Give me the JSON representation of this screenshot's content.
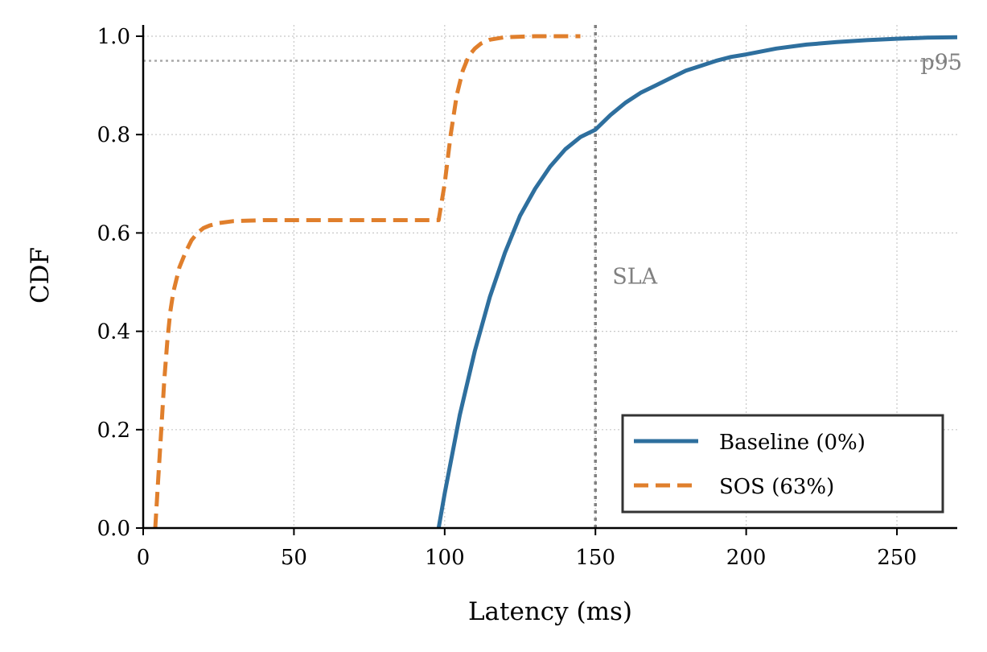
{
  "chart_data": {
    "type": "line",
    "title": "",
    "xlabel": "Latency (ms)",
    "ylabel": "CDF",
    "xlim": [
      0,
      270
    ],
    "ylim": [
      0,
      1.02
    ],
    "xticks": [
      0,
      50,
      100,
      150,
      200,
      250
    ],
    "xtick_labels": [
      "0",
      "50",
      "100",
      "150",
      "200",
      "250"
    ],
    "yticks": [
      0.0,
      0.2,
      0.4,
      0.6,
      0.8,
      1.0
    ],
    "ytick_labels": [
      "0.0",
      "0.2",
      "0.4",
      "0.6",
      "0.8",
      "1.0"
    ],
    "grid": true,
    "legend_position": "lower-right",
    "series": [
      {
        "name": "Baseline (0%)",
        "style": "solid",
        "color": "#2e6f9e",
        "x": [
          98,
          100,
          105,
          110,
          115,
          120,
          125,
          130,
          135,
          140,
          145,
          150,
          155,
          160,
          165,
          170,
          175,
          180,
          185,
          190,
          195,
          200,
          210,
          220,
          230,
          240,
          250,
          260,
          270
        ],
        "y": [
          0.0,
          0.07,
          0.23,
          0.36,
          0.47,
          0.56,
          0.635,
          0.69,
          0.735,
          0.77,
          0.795,
          0.81,
          0.84,
          0.865,
          0.885,
          0.9,
          0.915,
          0.93,
          0.94,
          0.95,
          0.958,
          0.963,
          0.975,
          0.983,
          0.988,
          0.992,
          0.995,
          0.997,
          0.998
        ]
      },
      {
        "name": "SOS (63%)",
        "style": "dashed",
        "color": "#e07f2c",
        "x": [
          4,
          5,
          6,
          7,
          8,
          9,
          10,
          12,
          14,
          16,
          18,
          20,
          22,
          25,
          30,
          40,
          60,
          80,
          98,
          100,
          102,
          104,
          106,
          108,
          110,
          112,
          115,
          120,
          130,
          145
        ],
        "y": [
          0.0,
          0.1,
          0.2,
          0.3,
          0.38,
          0.44,
          0.48,
          0.53,
          0.56,
          0.585,
          0.6,
          0.61,
          0.615,
          0.62,
          0.624,
          0.626,
          0.626,
          0.626,
          0.626,
          0.7,
          0.8,
          0.88,
          0.93,
          0.96,
          0.975,
          0.985,
          0.993,
          0.998,
          1.0,
          1.0
        ]
      }
    ],
    "reference_lines": [
      {
        "orientation": "vertical",
        "value": 150,
        "label": "SLA",
        "label_y": 0.5
      },
      {
        "orientation": "horizontal",
        "value": 0.95,
        "label": "p95"
      }
    ]
  },
  "colors": {
    "baseline": "#2e6f9e",
    "sos": "#e07f2c",
    "reference": "#808080",
    "grid": "#c8c8c8"
  }
}
